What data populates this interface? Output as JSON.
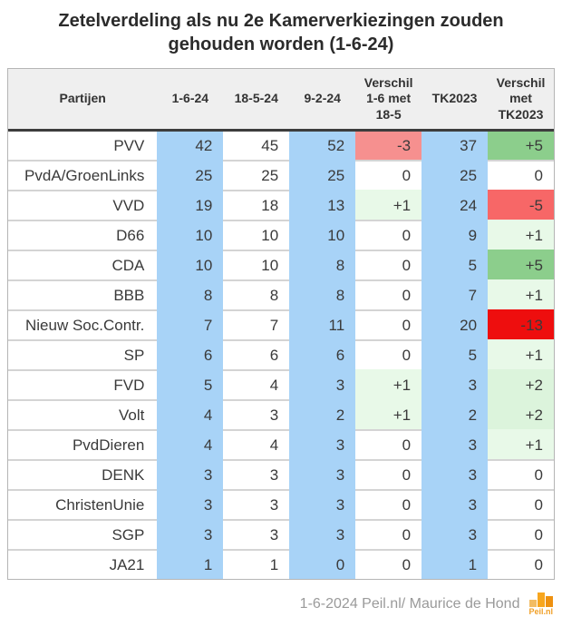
{
  "title": "Zetelverdeling als nu 2e Kamerverkiezingen zouden gehouden worden (1-6-24)",
  "colors": {
    "seat_column_blue": "#a8d3f7",
    "diff_pink": "#f6908f",
    "diff_red": "#f76767",
    "diff_bright_red": "#ee0e0e",
    "diff_green": "#8cce8c",
    "diff_light_green": "#e8f9e8",
    "diff_lighter_green": "#dcf4dc",
    "neutral_white": "#ffffff"
  },
  "chart_data": {
    "type": "table",
    "title": "Zetelverdeling als nu 2e Kamerverkiezingen zouden gehouden worden (1-6-24)",
    "headers": [
      "Partijen",
      "1-6-24",
      "18-5-24",
      "9-2-24",
      "Verschil 1-6 met 18-5",
      "TK2023",
      "Verschil met TK2023"
    ],
    "rows": [
      {
        "party": "PVV",
        "v_1_6_24": "42",
        "v_18_5_24": "45",
        "v_9_2_24": "52",
        "diff_18_5": "-3",
        "diff_18_5_bg": "#f6908f",
        "tk2023": "37",
        "diff_tk2023": "+5",
        "diff_tk2023_bg": "#8cce8c"
      },
      {
        "party": "PvdA/GroenLinks",
        "v_1_6_24": "25",
        "v_18_5_24": "25",
        "v_9_2_24": "25",
        "diff_18_5": "0",
        "diff_18_5_bg": "#ffffff",
        "tk2023": "25",
        "diff_tk2023": "0",
        "diff_tk2023_bg": "#ffffff"
      },
      {
        "party": "VVD",
        "v_1_6_24": "19",
        "v_18_5_24": "18",
        "v_9_2_24": "13",
        "diff_18_5": "+1",
        "diff_18_5_bg": "#e8f9e8",
        "tk2023": "24",
        "diff_tk2023": "-5",
        "diff_tk2023_bg": "#f76767"
      },
      {
        "party": "D66",
        "v_1_6_24": "10",
        "v_18_5_24": "10",
        "v_9_2_24": "10",
        "diff_18_5": "0",
        "diff_18_5_bg": "#ffffff",
        "tk2023": "9",
        "diff_tk2023": "+1",
        "diff_tk2023_bg": "#e8f9e8"
      },
      {
        "party": "CDA",
        "v_1_6_24": "10",
        "v_18_5_24": "10",
        "v_9_2_24": "8",
        "diff_18_5": "0",
        "diff_18_5_bg": "#ffffff",
        "tk2023": "5",
        "diff_tk2023": "+5",
        "diff_tk2023_bg": "#8cce8c"
      },
      {
        "party": "BBB",
        "v_1_6_24": "8",
        "v_18_5_24": "8",
        "v_9_2_24": "8",
        "diff_18_5": "0",
        "diff_18_5_bg": "#ffffff",
        "tk2023": "7",
        "diff_tk2023": "+1",
        "diff_tk2023_bg": "#e8f9e8"
      },
      {
        "party": "Nieuw Soc.Contr.",
        "v_1_6_24": "7",
        "v_18_5_24": "7",
        "v_9_2_24": "11",
        "diff_18_5": "0",
        "diff_18_5_bg": "#ffffff",
        "tk2023": "20",
        "diff_tk2023": "-13",
        "diff_tk2023_bg": "#ee0e0e"
      },
      {
        "party": "SP",
        "v_1_6_24": "6",
        "v_18_5_24": "6",
        "v_9_2_24": "6",
        "diff_18_5": "0",
        "diff_18_5_bg": "#ffffff",
        "tk2023": "5",
        "diff_tk2023": "+1",
        "diff_tk2023_bg": "#e8f9e8"
      },
      {
        "party": "FVD",
        "v_1_6_24": "5",
        "v_18_5_24": "4",
        "v_9_2_24": "3",
        "diff_18_5": "+1",
        "diff_18_5_bg": "#e8f9e8",
        "tk2023": "3",
        "diff_tk2023": "+2",
        "diff_tk2023_bg": "#dcf4dc"
      },
      {
        "party": "Volt",
        "v_1_6_24": "4",
        "v_18_5_24": "3",
        "v_9_2_24": "2",
        "diff_18_5": "+1",
        "diff_18_5_bg": "#e8f9e8",
        "tk2023": "2",
        "diff_tk2023": "+2",
        "diff_tk2023_bg": "#dcf4dc"
      },
      {
        "party": "PvdDieren",
        "v_1_6_24": "4",
        "v_18_5_24": "4",
        "v_9_2_24": "3",
        "diff_18_5": "0",
        "diff_18_5_bg": "#ffffff",
        "tk2023": "3",
        "diff_tk2023": "+1",
        "diff_tk2023_bg": "#e8f9e8"
      },
      {
        "party": "DENK",
        "v_1_6_24": "3",
        "v_18_5_24": "3",
        "v_9_2_24": "3",
        "diff_18_5": "0",
        "diff_18_5_bg": "#ffffff",
        "tk2023": "3",
        "diff_tk2023": "0",
        "diff_tk2023_bg": "#ffffff"
      },
      {
        "party": "ChristenUnie",
        "v_1_6_24": "3",
        "v_18_5_24": "3",
        "v_9_2_24": "3",
        "diff_18_5": "0",
        "diff_18_5_bg": "#ffffff",
        "tk2023": "3",
        "diff_tk2023": "0",
        "diff_tk2023_bg": "#ffffff"
      },
      {
        "party": "SGP",
        "v_1_6_24": "3",
        "v_18_5_24": "3",
        "v_9_2_24": "3",
        "diff_18_5": "0",
        "diff_18_5_bg": "#ffffff",
        "tk2023": "3",
        "diff_tk2023": "0",
        "diff_tk2023_bg": "#ffffff"
      },
      {
        "party": "JA21",
        "v_1_6_24": "1",
        "v_18_5_24": "1",
        "v_9_2_24": "0",
        "diff_18_5": "0",
        "diff_18_5_bg": "#ffffff",
        "tk2023": "1",
        "diff_tk2023": "0",
        "diff_tk2023_bg": "#ffffff"
      }
    ]
  },
  "footer": {
    "source": "1-6-2024 Peil.nl/ Maurice de Hond",
    "logo_text": "Peil.nl",
    "logo_bar_colors": [
      "#f2bc63",
      "#f7a61f",
      "#ee9110"
    ]
  }
}
